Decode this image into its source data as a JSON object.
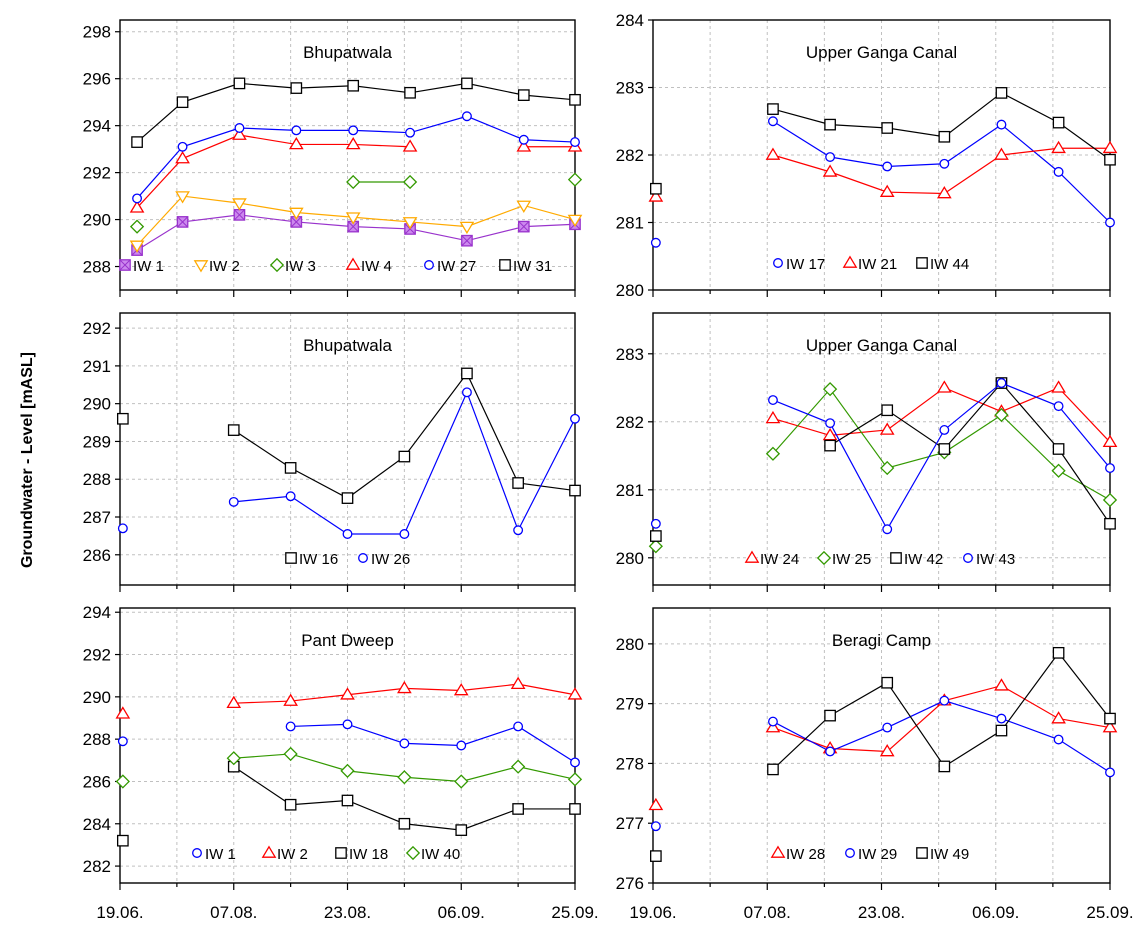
{
  "figure": {
    "ylabel": "Groundwater - Level [mASL]",
    "x_tick_labels": [
      "19.06.",
      "07.08.",
      "23.08.",
      "06.09.",
      "25.09."
    ]
  },
  "colors": {
    "red": "#ff0000",
    "blue": "#0000ff",
    "black": "#000000",
    "green": "#339900",
    "orange": "#ffaa00",
    "purple": "#9933cc",
    "grid": "#c0c0c0"
  },
  "chart_data": [
    {
      "type": "line",
      "title": "Bhupatwala",
      "ylim": [
        287,
        298.5
      ],
      "yticks": [
        288,
        290,
        292,
        294,
        296,
        298
      ],
      "xlim": [
        0,
        8
      ],
      "x_ticks": [
        0,
        2,
        4,
        6,
        8
      ],
      "grid": true,
      "legend": "bottom",
      "series": [
        {
          "name": "IW 1",
          "marker": "square-cross",
          "color": "#9933cc",
          "x": [
            0.3,
            1.1,
            2.1,
            3.1,
            4.1,
            5.1,
            6.1,
            7.1,
            8.0
          ],
          "y": [
            288.7,
            289.9,
            290.2,
            289.9,
            289.7,
            289.6,
            289.1,
            289.7,
            289.8
          ]
        },
        {
          "name": "IW 2",
          "marker": "triangle-down",
          "color": "#ffaa00",
          "x": [
            0.3,
            1.1,
            2.1,
            3.1,
            4.1,
            5.1,
            6.1,
            7.1,
            8.0
          ],
          "y": [
            288.9,
            291.0,
            290.7,
            290.3,
            290.1,
            289.9,
            289.7,
            290.6,
            290.0
          ]
        },
        {
          "name": "IW 3",
          "marker": "diamond",
          "color": "#339900",
          "x": [
            0.3,
            4.1,
            5.1,
            8.0
          ],
          "y": [
            289.7,
            291.6,
            291.6,
            291.7
          ],
          "breaks_after": [
            0,
            2
          ]
        },
        {
          "name": "IW 4",
          "marker": "triangle-up",
          "color": "#ff0000",
          "x": [
            0.3,
            1.1,
            2.1,
            3.1,
            4.1,
            5.1,
            6.1,
            7.1,
            8.0
          ],
          "y": [
            290.5,
            292.6,
            293.6,
            293.2,
            293.2,
            293.1,
            null,
            293.1,
            293.1
          ]
        },
        {
          "name": "IW 27",
          "marker": "circle",
          "color": "#0000ff",
          "x": [
            0.3,
            1.1,
            2.1,
            3.1,
            4.1,
            5.1,
            6.1,
            7.1,
            8.0
          ],
          "y": [
            290.9,
            293.1,
            293.9,
            293.8,
            293.8,
            293.7,
            294.4,
            293.4,
            293.3
          ]
        },
        {
          "name": "IW 31",
          "marker": "square",
          "color": "#000000",
          "x": [
            0.3,
            1.1,
            2.1,
            3.1,
            4.1,
            5.1,
            6.1,
            7.1,
            8.0
          ],
          "y": [
            293.3,
            295.0,
            295.8,
            295.6,
            295.7,
            295.4,
            295.8,
            295.3,
            295.1
          ]
        }
      ]
    },
    {
      "type": "line",
      "title": "Upper Ganga Canal",
      "ylim": [
        280,
        284
      ],
      "yticks": [
        280,
        281,
        282,
        283,
        284
      ],
      "xlim": [
        0,
        8
      ],
      "x_ticks": [
        0,
        2,
        4,
        6,
        8
      ],
      "grid": true,
      "legend": "bottom",
      "series": [
        {
          "name": "IW 17",
          "marker": "circle",
          "color": "#0000ff",
          "x": [
            0.05,
            2.1,
            3.1,
            4.1,
            5.1,
            6.1,
            7.1,
            8.0
          ],
          "y": [
            280.7,
            282.5,
            281.97,
            281.83,
            281.87,
            282.45,
            281.75,
            281.0
          ],
          "breaks_after": [
            0
          ]
        },
        {
          "name": "IW 21",
          "marker": "triangle-up",
          "color": "#ff0000",
          "x": [
            0.05,
            2.1,
            3.1,
            4.1,
            5.1,
            6.1,
            7.1,
            8.0
          ],
          "y": [
            281.38,
            282.0,
            281.75,
            281.45,
            281.43,
            282.0,
            282.1,
            282.1
          ],
          "breaks_after": [
            0
          ]
        },
        {
          "name": "IW 44",
          "marker": "square",
          "color": "#000000",
          "x": [
            0.05,
            2.1,
            3.1,
            4.1,
            5.1,
            6.1,
            7.1,
            8.0
          ],
          "y": [
            281.5,
            282.68,
            282.45,
            282.4,
            282.27,
            282.92,
            282.48,
            281.93
          ],
          "breaks_after": [
            0
          ]
        }
      ]
    },
    {
      "type": "line",
      "title": "Bhupatwala",
      "ylim": [
        285.2,
        292.4
      ],
      "yticks": [
        286,
        287,
        288,
        289,
        290,
        291,
        292
      ],
      "xlim": [
        0,
        8
      ],
      "x_ticks": [
        0,
        2,
        4,
        6,
        8
      ],
      "grid": true,
      "legend": "bottom",
      "series": [
        {
          "name": "IW 16",
          "marker": "square",
          "color": "#000000",
          "x": [
            0.05,
            2.0,
            3.0,
            4.0,
            5.0,
            6.1,
            7.0,
            8.0
          ],
          "y": [
            289.6,
            289.3,
            288.3,
            287.5,
            288.6,
            290.8,
            287.9,
            287.7
          ],
          "breaks_after": [
            0
          ]
        },
        {
          "name": "IW 26",
          "marker": "circle",
          "color": "#0000ff",
          "x": [
            0.05,
            2.0,
            3.0,
            4.0,
            5.0,
            6.1,
            7.0,
            8.0
          ],
          "y": [
            286.7,
            287.4,
            287.55,
            286.55,
            286.55,
            290.3,
            286.65,
            289.6
          ],
          "breaks_after": [
            0
          ]
        }
      ]
    },
    {
      "type": "line",
      "title": "Upper Ganga Canal",
      "ylim": [
        279.6,
        283.6
      ],
      "yticks": [
        280,
        281,
        282,
        283
      ],
      "xlim": [
        0,
        8
      ],
      "x_ticks": [
        0,
        2,
        4,
        6,
        8
      ],
      "grid": true,
      "legend": "bottom",
      "series": [
        {
          "name": "IW 24",
          "marker": "triangle-up",
          "color": "#ff0000",
          "x": [
            2.1,
            3.1,
            4.1,
            5.1,
            6.1,
            7.1,
            8.0
          ],
          "y": [
            282.05,
            281.8,
            281.88,
            282.5,
            282.15,
            282.5,
            281.7
          ]
        },
        {
          "name": "IW 25",
          "marker": "diamond",
          "color": "#339900",
          "x": [
            0.05,
            2.1,
            3.1,
            4.1,
            5.1,
            6.1,
            7.1,
            8.0
          ],
          "y": [
            280.17,
            281.53,
            282.48,
            281.32,
            281.55,
            282.1,
            281.28,
            280.85
          ],
          "breaks_after": [
            0
          ]
        },
        {
          "name": "IW 42",
          "marker": "square",
          "color": "#000000",
          "x": [
            0.05,
            3.1,
            4.1,
            5.1,
            6.1,
            7.1,
            8.0
          ],
          "y": [
            280.32,
            281.65,
            282.17,
            281.6,
            282.57,
            281.6,
            280.5
          ],
          "breaks_after": [
            0
          ]
        },
        {
          "name": "IW 43",
          "marker": "circle",
          "color": "#0000ff",
          "x": [
            0.05,
            2.1,
            3.1,
            4.1,
            5.1,
            6.1,
            7.1,
            8.0
          ],
          "y": [
            280.5,
            282.32,
            281.98,
            280.42,
            281.88,
            282.57,
            282.23,
            281.32
          ],
          "breaks_after": [
            0
          ]
        }
      ]
    },
    {
      "type": "line",
      "title": "Pant Dweep",
      "ylim": [
        281.2,
        294.2
      ],
      "yticks": [
        282,
        284,
        286,
        288,
        290,
        292,
        294
      ],
      "xlim": [
        0,
        8
      ],
      "x_ticks": [
        0,
        2,
        4,
        6,
        8
      ],
      "grid": true,
      "legend": "bottom",
      "series": [
        {
          "name": "IW 1",
          "marker": "circle",
          "color": "#0000ff",
          "x": [
            0.05,
            3.0,
            4.0,
            5.0,
            6.0,
            7.0,
            8.0
          ],
          "y": [
            287.9,
            288.6,
            288.7,
            287.8,
            287.7,
            288.6,
            286.9
          ],
          "breaks_after": [
            0
          ]
        },
        {
          "name": "IW 2",
          "marker": "triangle-up",
          "color": "#ff0000",
          "x": [
            0.05,
            2.0,
            3.0,
            4.0,
            5.0,
            6.0,
            7.0,
            8.0
          ],
          "y": [
            289.2,
            289.7,
            289.8,
            290.1,
            290.4,
            290.3,
            290.6,
            290.1
          ],
          "breaks_after": [
            0
          ]
        },
        {
          "name": "IW 18",
          "marker": "square",
          "color": "#000000",
          "x": [
            0.05,
            2.0,
            3.0,
            4.0,
            5.0,
            6.0,
            7.0,
            8.0
          ],
          "y": [
            283.2,
            286.7,
            284.9,
            285.1,
            284.0,
            283.7,
            284.7,
            284.7
          ],
          "breaks_after": [
            0
          ]
        },
        {
          "name": "IW 40",
          "marker": "diamond",
          "color": "#339900",
          "x": [
            0.05,
            2.0,
            3.0,
            4.0,
            5.0,
            6.0,
            7.0,
            8.0
          ],
          "y": [
            286.0,
            287.1,
            287.3,
            286.5,
            286.2,
            286.0,
            286.7,
            286.1
          ],
          "breaks_after": [
            0
          ]
        }
      ]
    },
    {
      "type": "line",
      "title": "Beragi Camp",
      "ylim": [
        276,
        280.6
      ],
      "yticks": [
        276,
        277,
        278,
        279,
        280
      ],
      "xlim": [
        0,
        8
      ],
      "x_ticks": [
        0,
        2,
        4,
        6,
        8
      ],
      "grid": true,
      "legend": "bottom",
      "series": [
        {
          "name": "IW 28",
          "marker": "triangle-up",
          "color": "#ff0000",
          "x": [
            0.05,
            2.1,
            3.1,
            4.1,
            5.1,
            6.1,
            7.1,
            8.0
          ],
          "y": [
            277.3,
            278.6,
            278.25,
            278.2,
            279.05,
            279.3,
            278.75,
            278.6
          ],
          "breaks_after": [
            0
          ]
        },
        {
          "name": "IW 29",
          "marker": "circle",
          "color": "#0000ff",
          "x": [
            0.05,
            2.1,
            3.1,
            4.1,
            5.1,
            6.1,
            7.1,
            8.0
          ],
          "y": [
            276.95,
            278.7,
            278.2,
            278.6,
            279.05,
            278.75,
            278.4,
            277.85
          ],
          "breaks_after": [
            0
          ]
        },
        {
          "name": "IW 49",
          "marker": "square",
          "color": "#000000",
          "x": [
            0.05,
            2.1,
            3.1,
            4.1,
            5.1,
            6.1,
            7.1,
            8.0
          ],
          "y": [
            276.45,
            277.9,
            278.8,
            279.35,
            277.95,
            278.55,
            279.85,
            278.75
          ],
          "breaks_after": [
            0
          ]
        }
      ]
    }
  ]
}
